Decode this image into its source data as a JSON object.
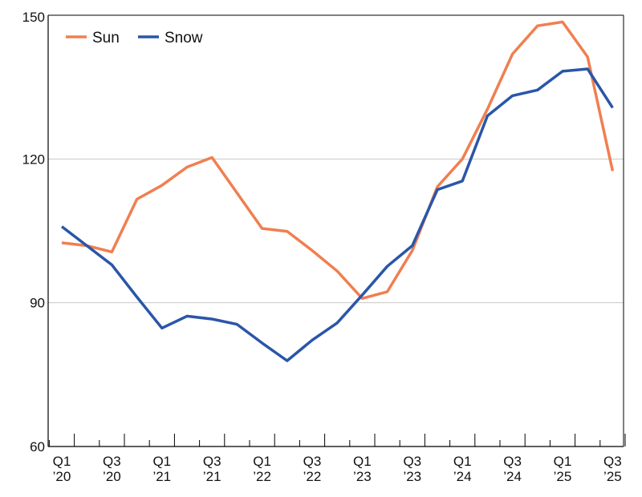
{
  "chart_data": {
    "type": "line",
    "x": [
      "Q1 2020",
      "Q2 2020",
      "Q3 2020",
      "Q4 2020",
      "Q1 2021",
      "Q2 2021",
      "Q3 2021",
      "Q4 2021",
      "Q1 2022",
      "Q2 2022",
      "Q3 2022",
      "Q4 2022",
      "Q1 2023",
      "Q2 2023",
      "Q3 2023",
      "Q4 2023",
      "Q1 2024",
      "Q2 2024",
      "Q3 2024",
      "Q4 2024",
      "Q1 2025",
      "Q2 2025",
      "Q3 2025"
    ],
    "xticks": [
      {
        "line1": "Q1",
        "line2": "’20"
      },
      {
        "line1": "Q3",
        "line2": "’20"
      },
      {
        "line1": "Q1",
        "line2": "’21"
      },
      {
        "line1": "Q3",
        "line2": "’21"
      },
      {
        "line1": "Q1",
        "line2": "’22"
      },
      {
        "line1": "Q3",
        "line2": "’22"
      },
      {
        "line1": "Q1",
        "line2": "’23"
      },
      {
        "line1": "Q3",
        "line2": "’23"
      },
      {
        "line1": "Q1",
        "line2": "’24"
      },
      {
        "line1": "Q3",
        "line2": "’24"
      },
      {
        "line1": "Q1",
        "line2": "’25"
      },
      {
        "line1": "Q3",
        "line2": "’25"
      }
    ],
    "yticks": [
      60,
      90,
      120,
      150
    ],
    "ylim": [
      60,
      150
    ],
    "grid": "horizontal",
    "legend_position": "top-left",
    "title": "",
    "xlabel": "",
    "ylabel": "",
    "series": [
      {
        "name": "Sun",
        "color": "#f07f50",
        "values": [
          102.5,
          101.9,
          100.6,
          111.6,
          114.5,
          118.3,
          120.3,
          112.9,
          105.5,
          104.9,
          100.9,
          96.6,
          90.9,
          92.3,
          100.9,
          114.2,
          120.0,
          130.4,
          141.9,
          147.8,
          148.6,
          141.3,
          117.5
        ]
      },
      {
        "name": "Snow",
        "color": "#2a56a8",
        "values": [
          105.9,
          101.9,
          97.9,
          91.2,
          84.7,
          87.2,
          86.6,
          85.5,
          81.6,
          77.9,
          82.2,
          85.8,
          91.6,
          97.6,
          101.9,
          113.6,
          115.4,
          129.0,
          133.2,
          134.4,
          138.3,
          138.8,
          130.7
        ]
      }
    ]
  }
}
